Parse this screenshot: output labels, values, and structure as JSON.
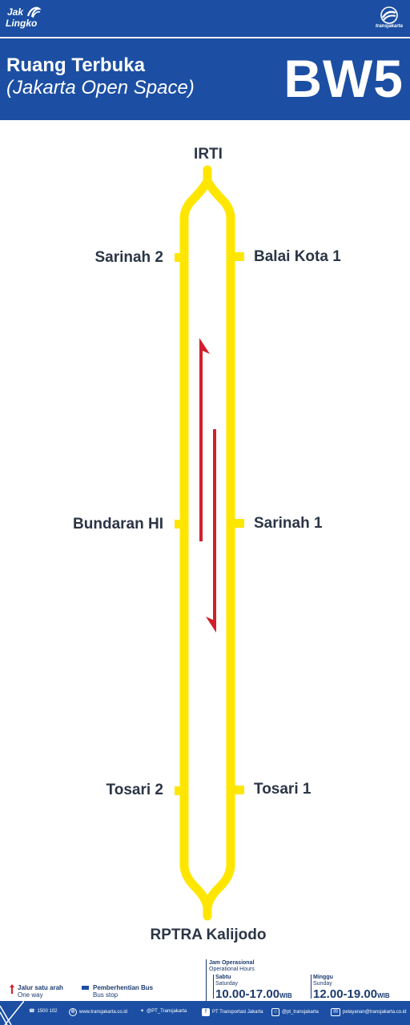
{
  "brand": {
    "left_logo_line1": "Jak",
    "left_logo_line2": "Lingko",
    "right_logo_name": "transjakarta"
  },
  "header": {
    "title": "Ruang Terbuka",
    "subtitle": "(Jakarta Open Space)",
    "route_code": "BW5"
  },
  "map": {
    "start_terminal": "IRTI",
    "end_terminal": "RPTRA Kalijodo",
    "left_stops": [
      "Sarinah 2",
      "Bundaran HI",
      "Tosari 2"
    ],
    "right_stops": [
      "Balai Kota 1",
      "Sarinah 1",
      "Tosari 1"
    ],
    "route_color": "#ffe600",
    "one_way_color": "#d21f2b"
  },
  "legend": {
    "one_way_label": "Jalur satu arah",
    "one_way_sub": "One way",
    "bus_stop_label": "Pemberhentian Bus",
    "bus_stop_sub": "Bus stop"
  },
  "hours": {
    "title": "Jam Operasional",
    "title_en": "Operational Hours",
    "saturday": "Sabtu",
    "saturday_en": "Saturday",
    "saturday_time": "10.00-17.00",
    "sunday": "Minggu",
    "sunday_en": "Sunday",
    "sunday_time": "12.00-19.00",
    "tz": "WIB"
  },
  "contacts": {
    "phone": "1500 102",
    "web": "www.transjakarta.co.id",
    "twitter": "@PT_Transjakarta",
    "facebook": "PT Transportasi Jakarta",
    "instagram": "@pt_transjakarta",
    "email": "pelayanan@transjakarta.co.id"
  },
  "colors": {
    "brand_blue": "#1c4fa3"
  }
}
